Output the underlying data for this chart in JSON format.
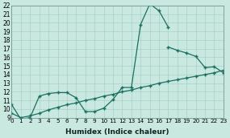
{
  "xlabel": "Humidex (Indice chaleur)",
  "bg_color": "#c8e8e0",
  "line_color": "#1a7060",
  "grid_color": "#a8d0c8",
  "xlim": [
    0,
    23
  ],
  "ylim": [
    9,
    22
  ],
  "xtick_vals": [
    0,
    1,
    2,
    3,
    4,
    5,
    6,
    7,
    8,
    9,
    10,
    11,
    12,
    13,
    14,
    15,
    16,
    17,
    18,
    19,
    20,
    21,
    22,
    23
  ],
  "ytick_vals": [
    9,
    10,
    11,
    12,
    13,
    14,
    15,
    16,
    17,
    18,
    19,
    20,
    21,
    22
  ],
  "line1_x": [
    0,
    1,
    2,
    3,
    4,
    5,
    6,
    7,
    8,
    9,
    10,
    11,
    12,
    13,
    14,
    15,
    16,
    17
  ],
  "line1_y": [
    10.5,
    8.8,
    9.0,
    11.5,
    11.8,
    11.9,
    11.9,
    11.3,
    9.7,
    9.7,
    10.1,
    11.1,
    12.5,
    12.5,
    19.8,
    22.2,
    21.4,
    19.5
  ],
  "line2_x": [
    17,
    18,
    19,
    20,
    21,
    22,
    23
  ],
  "line2_y": [
    17.2,
    16.8,
    16.5,
    16.1,
    14.8,
    14.9,
    14.2
  ],
  "line3_x": [
    0,
    1,
    2,
    3,
    4,
    5,
    6,
    7,
    8,
    9,
    10,
    11,
    12,
    13,
    14,
    15,
    16,
    17,
    18,
    19,
    20,
    21,
    22,
    23
  ],
  "line3_y": [
    9.5,
    9.0,
    9.2,
    9.5,
    9.9,
    10.2,
    10.5,
    10.7,
    11.0,
    11.2,
    11.5,
    11.7,
    12.0,
    12.2,
    12.5,
    12.7,
    13.0,
    13.2,
    13.4,
    13.6,
    13.8,
    14.0,
    14.2,
    14.5
  ],
  "xtick_fontsize": 5.2,
  "ytick_fontsize": 5.5,
  "xlabel_fontsize": 6.5
}
